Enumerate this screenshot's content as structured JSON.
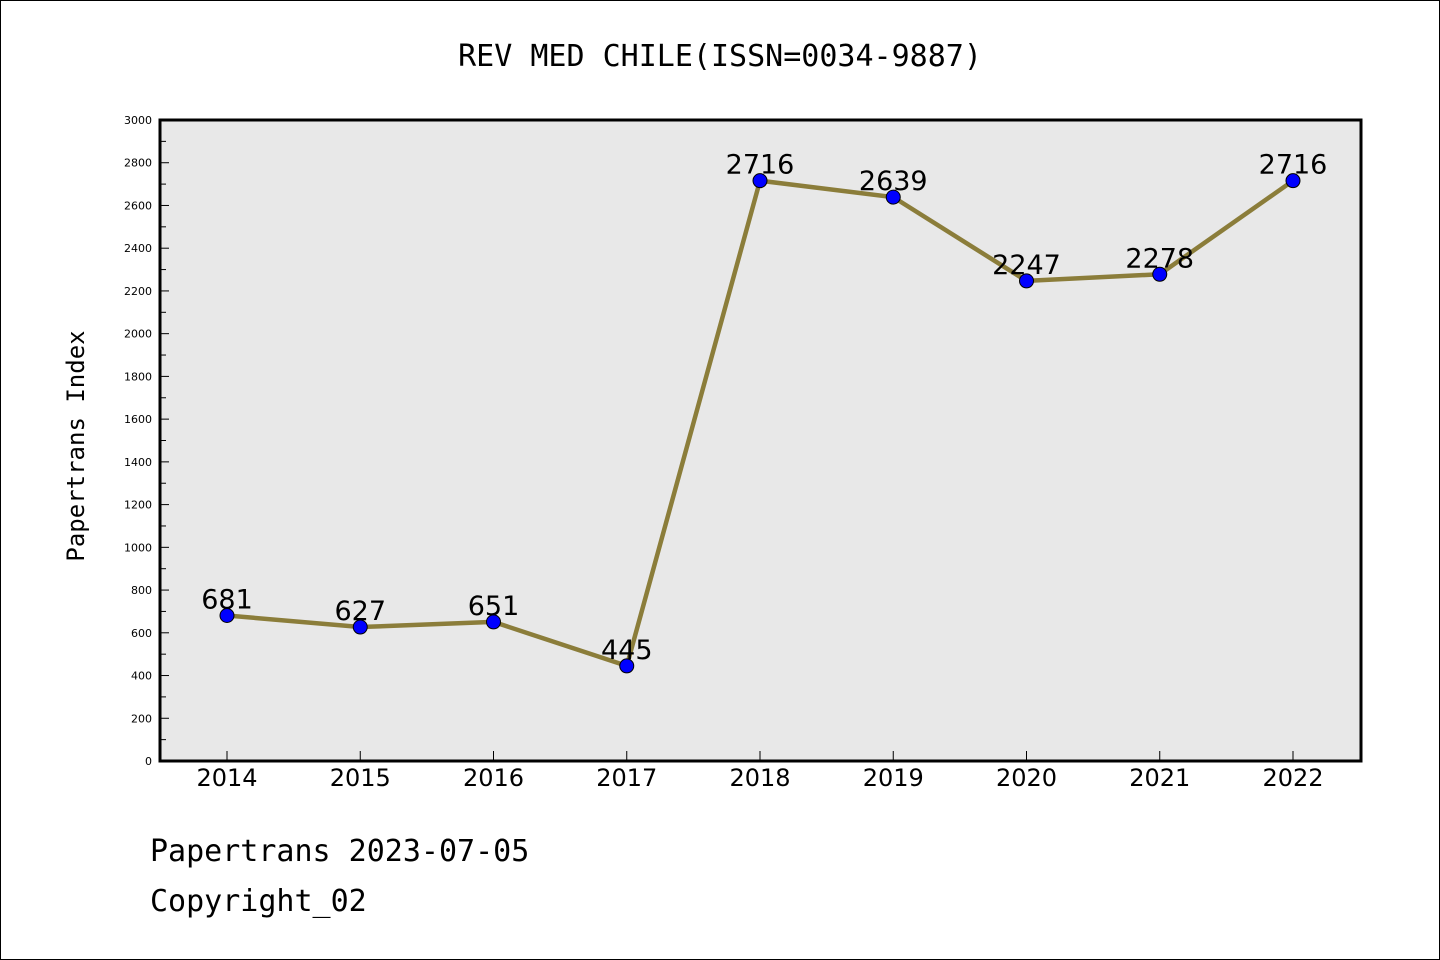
{
  "chart_data": {
    "type": "line",
    "title": "REV MED CHILE(ISSN=0034-9887)",
    "ylabel": "Papertrans Index",
    "xlabel": "",
    "categories": [
      "2014",
      "2015",
      "2016",
      "2017",
      "2018",
      "2019",
      "2020",
      "2021",
      "2022"
    ],
    "series": [
      {
        "values": [
          681,
          627,
          651,
          445,
          2716,
          2639,
          2247,
          2278,
          2716
        ],
        "labels": [
          "681",
          "627",
          "651",
          "445",
          "2716",
          "2639",
          "2247",
          "2278",
          "2716"
        ]
      }
    ],
    "yticks": [
      "0",
      "200",
      "400",
      "600",
      "800",
      "1000",
      "1200",
      "1400",
      "1600",
      "1800",
      "2000",
      "2200",
      "2400",
      "2600",
      "2800",
      "3000"
    ],
    "ylim": [
      0,
      3000
    ],
    "grid": false,
    "colors": {
      "line": "#8B7D3A",
      "marker_fill": "#0000FF",
      "plot_background": "#E8E8E8"
    }
  },
  "footer": {
    "line1": "Papertrans 2023-07-05",
    "line2": "Copyright_02"
  }
}
